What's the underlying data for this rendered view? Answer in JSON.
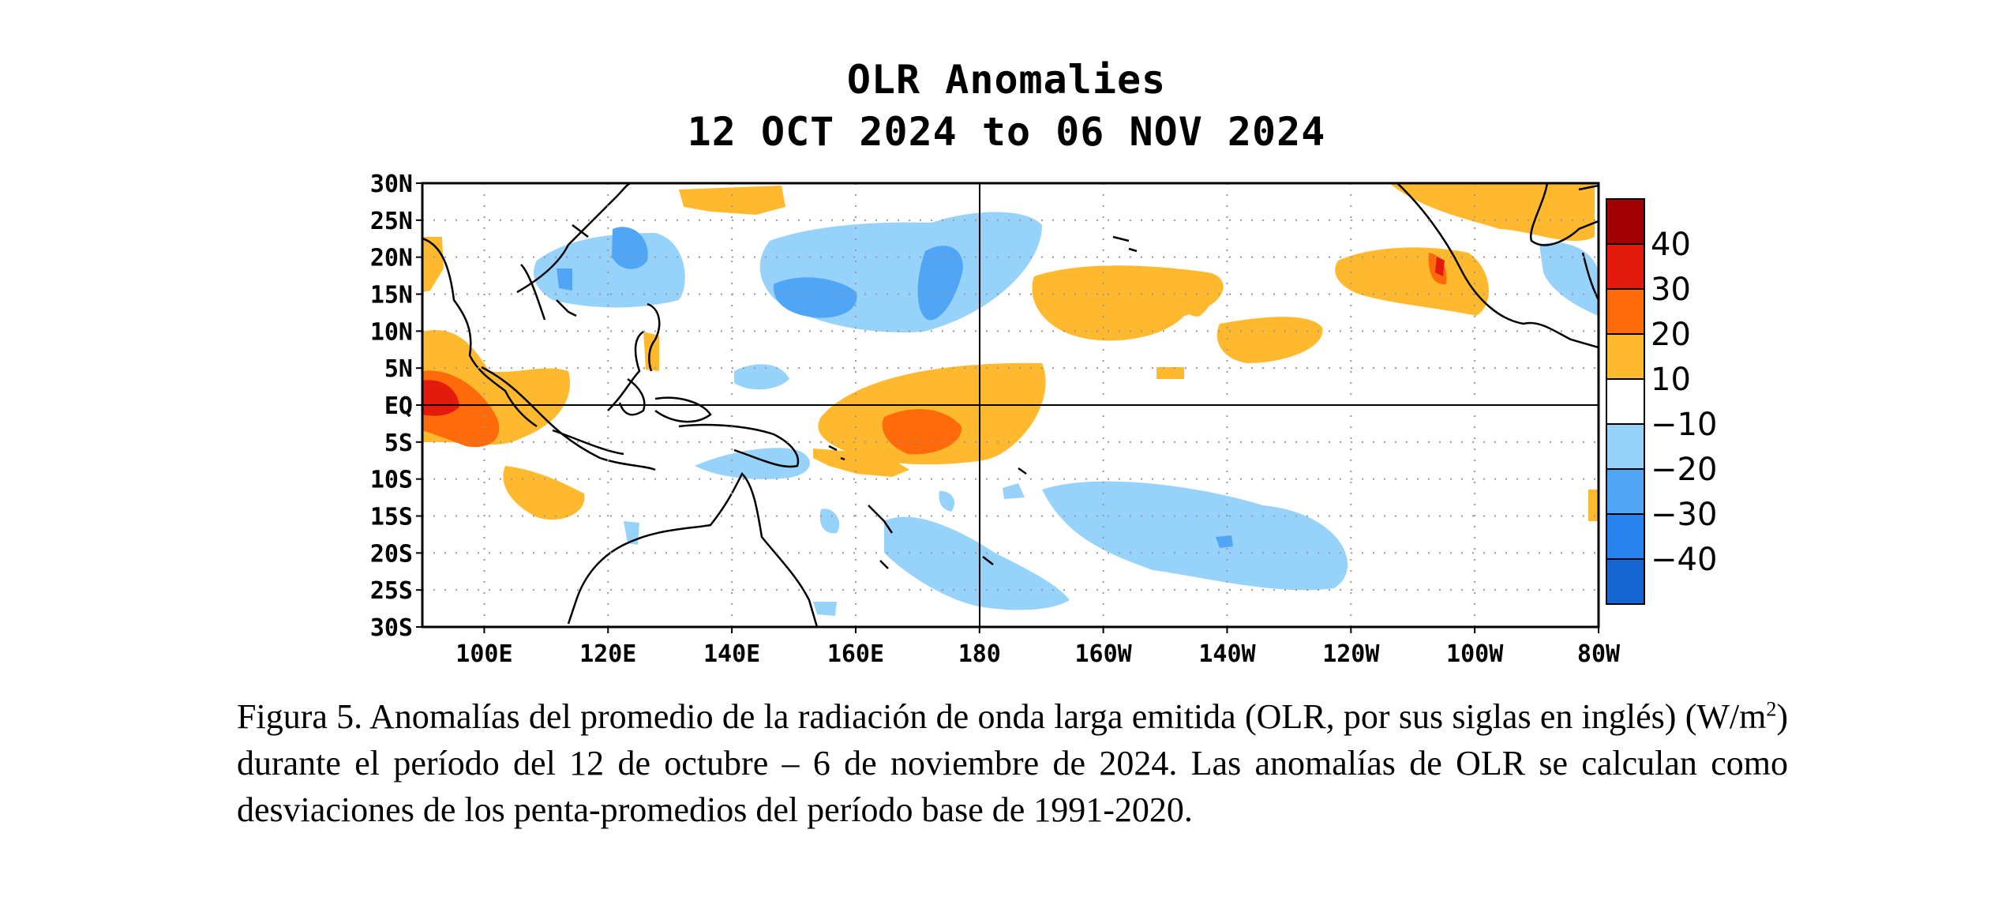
{
  "figure": {
    "title_line1": "OLR Anomalies",
    "title_line2": "12 OCT 2024 to 06 NOV 2024"
  },
  "map": {
    "lat_labels": [
      "30N",
      "25N",
      "20N",
      "15N",
      "10N",
      "5N",
      "EQ",
      "5S",
      "10S",
      "15S",
      "20S",
      "25S",
      "30S"
    ],
    "lon_labels": [
      "100E",
      "120E",
      "140E",
      "160E",
      "180",
      "160W",
      "140W",
      "120W",
      "100W",
      "80W"
    ],
    "lat_values": [
      30,
      25,
      20,
      15,
      10,
      5,
      0,
      -5,
      -10,
      -15,
      -20,
      -25,
      -30
    ],
    "lon_values_east": [
      100,
      120,
      140,
      160,
      180,
      200,
      220,
      240,
      260,
      280
    ],
    "extent": {
      "lon_min_east": 90,
      "lon_max_east": 280,
      "lat_min": -30,
      "lat_max": 30
    },
    "gridlines": "dotted",
    "reference_lines": [
      "equator",
      "dateline"
    ]
  },
  "colorbar": {
    "labels": [
      "40",
      "30",
      "20",
      "10",
      "−10",
      "−20",
      "−30",
      "−40"
    ],
    "levels": [
      {
        "range": "≥40",
        "color": "#a00000"
      },
      {
        "range": "30 to 40",
        "color": "#e41a0c"
      },
      {
        "range": "20 to 30",
        "color": "#ff6a0a"
      },
      {
        "range": "10 to 20",
        "color": "#ffb92e"
      },
      {
        "range": "-10 to 10",
        "color": "#ffffff"
      },
      {
        "range": "-20 to -10",
        "color": "#96d2fa"
      },
      {
        "range": "-30 to -20",
        "color": "#50a5f5"
      },
      {
        "range": "-40 to -30",
        "color": "#2882f0"
      },
      {
        "range": "≤-40",
        "color": "#1464d2"
      }
    ]
  },
  "caption": {
    "part1": "Figura 5. Anomalías del promedio de la radiación de onda larga emitida (OLR, por sus siglas en inglés) (W/m",
    "sup": "2",
    "part2": ") durante el período del 12 de octubre – 6 de noviembre de 2024.  Las anomalías de OLR se calculan como desviaciones de los penta-promedios del período base de 1991-2020."
  }
}
